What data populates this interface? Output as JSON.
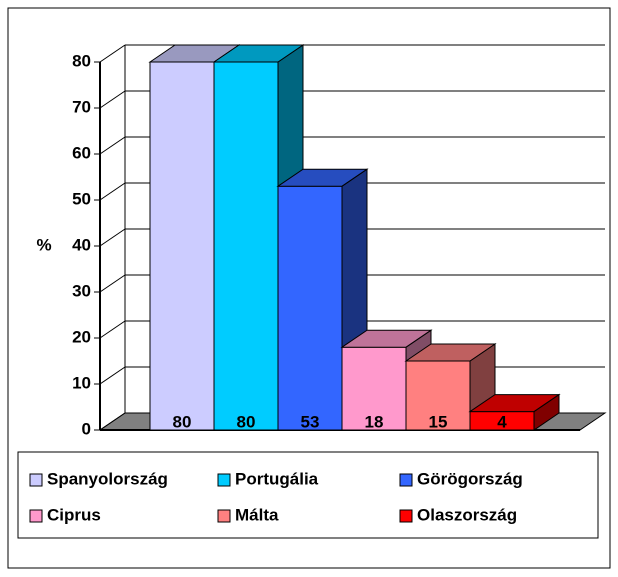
{
  "chart_data": {
    "type": "bar3d",
    "y_label": "%",
    "ylim": [
      0,
      80
    ],
    "yticks": [
      0,
      10,
      20,
      30,
      40,
      50,
      60,
      70,
      80
    ],
    "grid": true,
    "series": [
      {
        "name": "Spanyolország",
        "color": "#ccccff",
        "values": [
          80
        ]
      },
      {
        "name": "Portugália",
        "color": "#00ccff",
        "values": [
          80
        ]
      },
      {
        "name": "Görögország",
        "color": "#3366ff",
        "values": [
          53
        ]
      },
      {
        "name": "Ciprus",
        "color": "#ff99cc",
        "values": [
          18
        ]
      },
      {
        "name": "Málta",
        "color": "#ff8080",
        "values": [
          15
        ]
      },
      {
        "name": "Olaszország",
        "color": "#ff0000",
        "values": [
          4
        ]
      }
    ]
  }
}
